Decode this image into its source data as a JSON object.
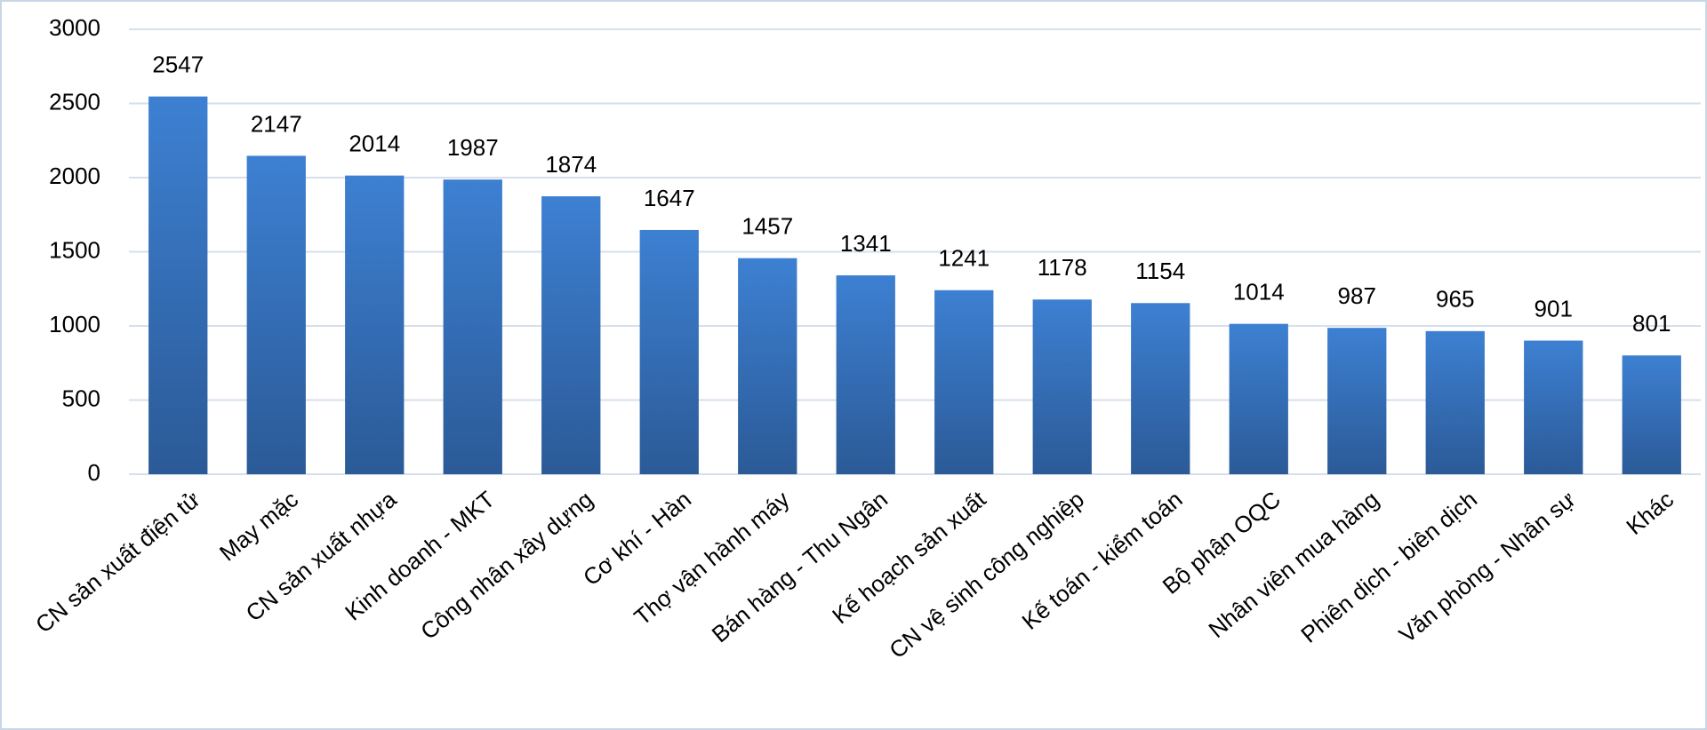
{
  "chart_data": {
    "type": "bar",
    "categories": [
      "CN sản xuất điện tử",
      "May mặc",
      "CN sản xuất nhựa",
      "Kinh doanh - MKT",
      "Công nhân xây dựng",
      "Cơ khí - Hàn",
      "Thợ vận hành máy",
      "Bán hàng - Thu Ngân",
      "Kế hoạch sản xuất",
      "CN vệ sinh công nghiệp",
      "Kế toán - kiểm toán",
      "Bộ phận OQC",
      "Nhân viên mua hàng",
      "Phiên dịch - biên dịch",
      "Văn phòng - Nhân sự",
      "Khác"
    ],
    "values": [
      2547,
      2147,
      2014,
      1987,
      1874,
      1647,
      1457,
      1341,
      1241,
      1178,
      1154,
      1014,
      987,
      965,
      901,
      801
    ],
    "color": "#3d80d2",
    "ylim": [
      0,
      3000
    ],
    "yticks": [
      0,
      500,
      1000,
      1500,
      2000,
      2500,
      3000
    ],
    "grid": true
  }
}
